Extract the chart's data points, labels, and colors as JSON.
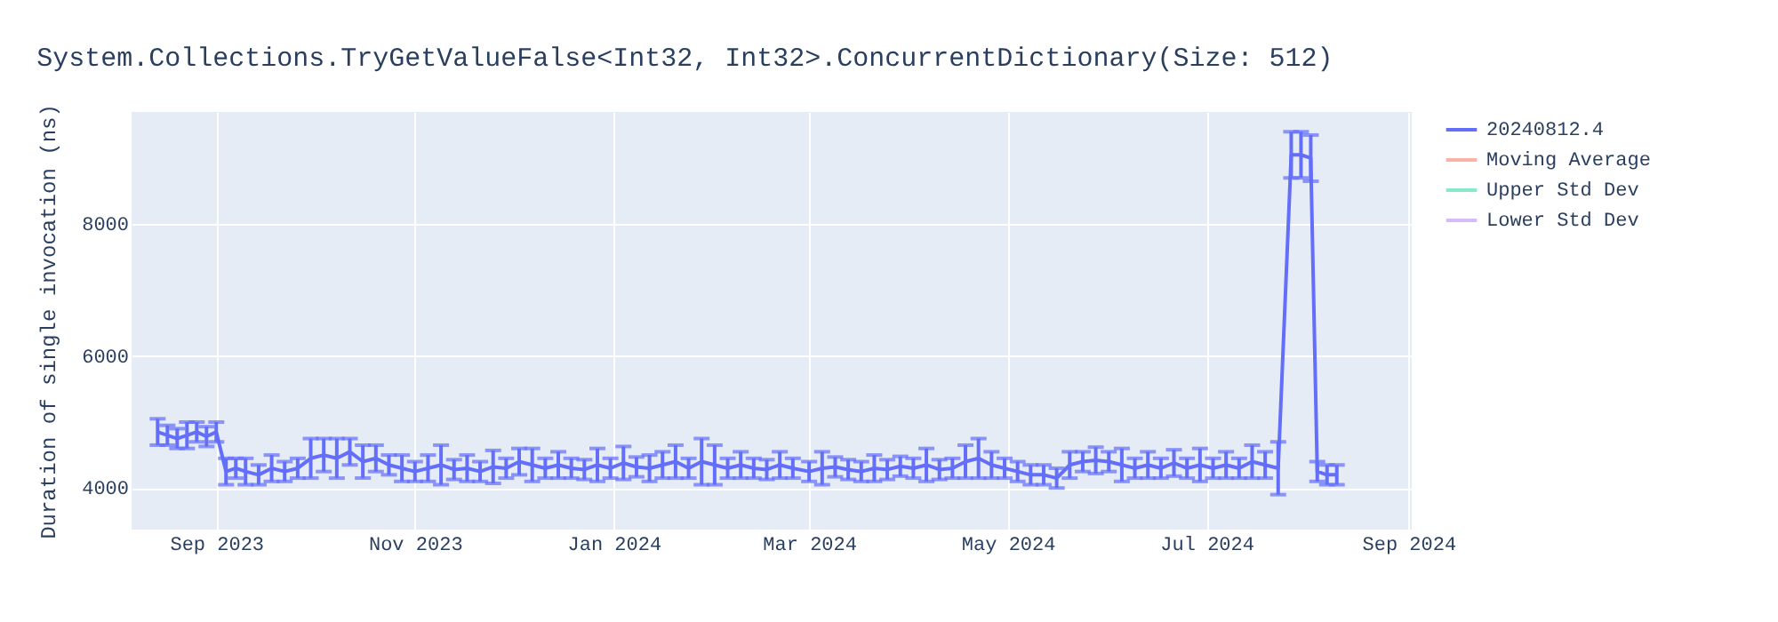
{
  "chart_data": {
    "type": "line",
    "title": "System.Collections.TryGetValueFalse<Int32, Int32>.ConcurrentDictionary(Size: 512)",
    "ylabel": "Duration of single invocation (ns)",
    "x": [
      "2023-08-14",
      "2023-08-17",
      "2023-08-20",
      "2023-08-23",
      "2023-08-26",
      "2023-08-29",
      "2023-09-01",
      "2023-09-04",
      "2023-09-07",
      "2023-09-10",
      "2023-09-14",
      "2023-09-18",
      "2023-09-22",
      "2023-09-26",
      "2023-09-30",
      "2023-10-04",
      "2023-10-08",
      "2023-10-12",
      "2023-10-16",
      "2023-10-20",
      "2023-10-24",
      "2023-10-28",
      "2023-11-01",
      "2023-11-05",
      "2023-11-09",
      "2023-11-13",
      "2023-11-17",
      "2023-11-21",
      "2023-11-25",
      "2023-11-29",
      "2023-12-03",
      "2023-12-07",
      "2023-12-11",
      "2023-12-15",
      "2023-12-19",
      "2023-12-23",
      "2023-12-27",
      "2023-12-31",
      "2024-01-04",
      "2024-01-08",
      "2024-01-12",
      "2024-01-16",
      "2024-01-20",
      "2024-01-24",
      "2024-01-28",
      "2024-02-01",
      "2024-02-05",
      "2024-02-09",
      "2024-02-13",
      "2024-02-17",
      "2024-02-21",
      "2024-02-25",
      "2024-03-01",
      "2024-03-05",
      "2024-03-09",
      "2024-03-13",
      "2024-03-17",
      "2024-03-21",
      "2024-03-25",
      "2024-03-29",
      "2024-04-02",
      "2024-04-06",
      "2024-04-10",
      "2024-04-14",
      "2024-04-18",
      "2024-04-22",
      "2024-04-26",
      "2024-04-30",
      "2024-05-04",
      "2024-05-08",
      "2024-05-12",
      "2024-05-16",
      "2024-05-20",
      "2024-05-24",
      "2024-05-28",
      "2024-06-01",
      "2024-06-05",
      "2024-06-09",
      "2024-06-13",
      "2024-06-17",
      "2024-06-21",
      "2024-06-25",
      "2024-06-29",
      "2024-07-03",
      "2024-07-07",
      "2024-07-11",
      "2024-07-15",
      "2024-07-19",
      "2024-07-23",
      "2024-07-27",
      "2024-07-30",
      "2024-08-02",
      "2024-08-04",
      "2024-08-07",
      "2024-08-10"
    ],
    "series": [
      {
        "name": "20240812.4",
        "color": "#636efa",
        "values": [
          4850,
          4800,
          4750,
          4800,
          4850,
          4780,
          4850,
          4250,
          4300,
          4250,
          4200,
          4300,
          4250,
          4300,
          4450,
          4500,
          4450,
          4550,
          4400,
          4450,
          4350,
          4300,
          4250,
          4300,
          4350,
          4280,
          4300,
          4250,
          4320,
          4300,
          4400,
          4350,
          4300,
          4350,
          4300,
          4280,
          4350,
          4300,
          4380,
          4320,
          4300,
          4350,
          4400,
          4300,
          4400,
          4350,
          4300,
          4350,
          4300,
          4280,
          4350,
          4300,
          4250,
          4300,
          4320,
          4280,
          4250,
          4300,
          4280,
          4330,
          4300,
          4350,
          4280,
          4300,
          4400,
          4450,
          4350,
          4300,
          4250,
          4200,
          4200,
          4150,
          4350,
          4400,
          4420,
          4400,
          4350,
          4300,
          4350,
          4300,
          4380,
          4300,
          4350,
          4300,
          4350,
          4300,
          4400,
          4350,
          4300,
          9050,
          9050,
          9000,
          4250,
          4200,
          4200
        ],
        "errors": [
          200,
          150,
          150,
          200,
          150,
          150,
          150,
          200,
          150,
          200,
          150,
          200,
          150,
          150,
          300,
          250,
          300,
          200,
          250,
          200,
          150,
          200,
          150,
          200,
          300,
          150,
          200,
          150,
          250,
          150,
          200,
          250,
          150,
          200,
          150,
          150,
          250,
          150,
          250,
          150,
          200,
          200,
          250,
          150,
          350,
          300,
          150,
          200,
          150,
          150,
          200,
          150,
          150,
          250,
          150,
          150,
          150,
          200,
          150,
          150,
          150,
          250,
          150,
          150,
          250,
          300,
          200,
          150,
          150,
          150,
          150,
          150,
          200,
          150,
          200,
          150,
          250,
          150,
          200,
          150,
          200,
          150,
          250,
          150,
          200,
          150,
          250,
          200,
          400,
          350,
          350,
          350,
          150,
          150,
          150
        ]
      },
      {
        "name": "Moving Average",
        "color": "#f8b3a6",
        "values": [
          null,
          null,
          null,
          null,
          null,
          null,
          null,
          null,
          null,
          null,
          null,
          null,
          null,
          null,
          null,
          null,
          null,
          null,
          null,
          null,
          null,
          null,
          null,
          null,
          null,
          null,
          null,
          null,
          null,
          null,
          null,
          null,
          null,
          null,
          null,
          null,
          null,
          null,
          null,
          null,
          null,
          null,
          null,
          null,
          null,
          null,
          null,
          null,
          null,
          null,
          null,
          null,
          null,
          null,
          null,
          null,
          null,
          null,
          null,
          null,
          null,
          null,
          null,
          null,
          null,
          null,
          null,
          null,
          null,
          null,
          null,
          null,
          null,
          null,
          null,
          null,
          null,
          null,
          null,
          null,
          null,
          null,
          null,
          null,
          null,
          null,
          null,
          null,
          null,
          null,
          null,
          null,
          null,
          null,
          null
        ]
      },
      {
        "name": "Upper Std Dev",
        "color": "#88e8cc",
        "values": [
          null,
          null,
          null,
          null,
          null,
          null,
          null,
          null,
          null,
          null,
          null,
          null,
          null,
          null,
          null,
          null,
          null,
          null,
          null,
          null,
          null,
          null,
          null,
          null,
          null,
          null,
          null,
          null,
          null,
          null,
          null,
          null,
          null,
          null,
          null,
          null,
          null,
          null,
          null,
          null,
          null,
          null,
          null,
          null,
          null,
          null,
          null,
          null,
          null,
          null,
          null,
          null,
          null,
          null,
          null,
          null,
          null,
          null,
          null,
          null,
          null,
          null,
          null,
          null,
          null,
          null,
          null,
          null,
          null,
          null,
          null,
          null,
          null,
          null,
          null,
          null,
          null,
          null,
          null,
          null,
          null,
          null,
          null,
          null,
          null,
          null,
          null,
          null,
          null,
          null,
          null,
          null,
          null,
          null,
          null
        ]
      },
      {
        "name": "Lower Std Dev",
        "color": "#d7bafc",
        "values": [
          null,
          null,
          null,
          null,
          null,
          null,
          null,
          null,
          null,
          null,
          null,
          null,
          null,
          null,
          null,
          null,
          null,
          null,
          null,
          null,
          null,
          null,
          null,
          null,
          null,
          null,
          null,
          null,
          null,
          null,
          null,
          null,
          null,
          null,
          null,
          null,
          null,
          null,
          null,
          null,
          null,
          null,
          null,
          null,
          null,
          null,
          null,
          null,
          null,
          null,
          null,
          null,
          null,
          null,
          null,
          null,
          null,
          null,
          null,
          null,
          null,
          null,
          null,
          null,
          null,
          null,
          null,
          null,
          null,
          null,
          null,
          null,
          null,
          null,
          null,
          null,
          null,
          null,
          null,
          null,
          null,
          null,
          null,
          null,
          null,
          null,
          null,
          null,
          null,
          null,
          null,
          null,
          null,
          null,
          null
        ]
      }
    ],
    "xlim": [
      "2023-08-06",
      "2024-09-02"
    ],
    "xticks": [
      {
        "value": "2023-09-01",
        "label": "Sep 2023"
      },
      {
        "value": "2023-11-01",
        "label": "Nov 2023"
      },
      {
        "value": "2024-01-01",
        "label": "Jan 2024"
      },
      {
        "value": "2024-03-01",
        "label": "Mar 2024"
      },
      {
        "value": "2024-05-01",
        "label": "May 2024"
      },
      {
        "value": "2024-07-01",
        "label": "Jul 2024"
      },
      {
        "value": "2024-09-01",
        "label": "Sep 2024"
      }
    ],
    "ylim": [
      3370,
      9700
    ],
    "yticks": [
      4000,
      6000,
      8000
    ],
    "grid": true,
    "legend": "right",
    "marker": "none",
    "line_style": "solid"
  }
}
